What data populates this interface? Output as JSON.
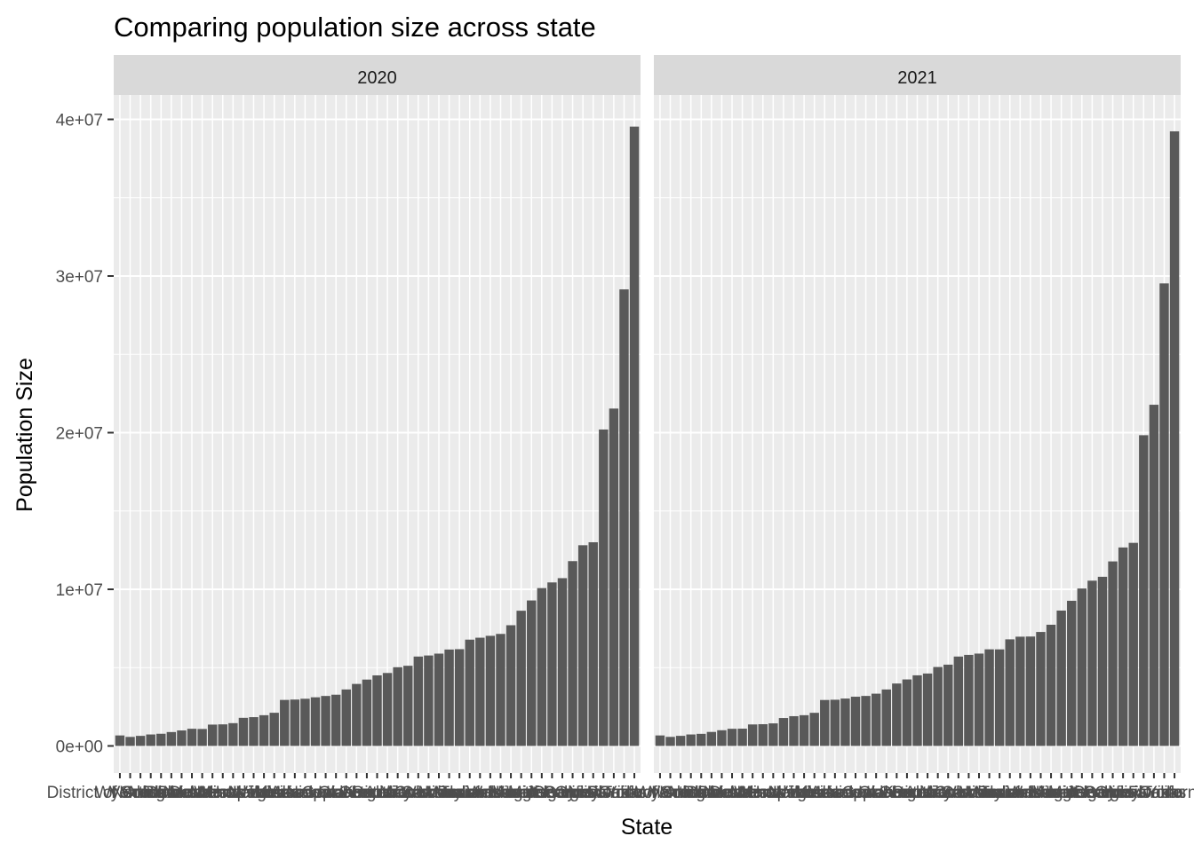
{
  "chart_data": {
    "type": "bar",
    "title": "Comparing population size across state",
    "xlabel": "State",
    "ylabel": "Population Size",
    "ylim": [
      -1700000,
      40500000
    ],
    "yticks": [
      0,
      10000000,
      20000000,
      30000000,
      40000000
    ],
    "ytick_labels": [
      "0e+00",
      "1e+07",
      "2e+07",
      "3e+07",
      "4e+07"
    ],
    "grid": true,
    "legend": "none",
    "bar_color": "#595959",
    "panel_bg": "#ebebeb",
    "strip_bg": "#d9d9d9",
    "categories": [
      "District of Columbia",
      "Wyoming",
      "Vermont",
      "Alaska",
      "North Dakota",
      "South Dakota",
      "Delaware",
      "Rhode Island",
      "Montana",
      "Maine",
      "New Hampshire",
      "Hawaii",
      "West Virginia",
      "Idaho",
      "Nebraska",
      "New Mexico",
      "Kansas",
      "Mississippi",
      "Arkansas",
      "Nevada",
      "Iowa",
      "Utah",
      "Connecticut",
      "Oklahoma",
      "Oregon",
      "Kentucky",
      "Louisiana",
      "Alabama",
      "South Carolina",
      "Minnesota",
      "Colorado",
      "Wisconsin",
      "Missouri",
      "Maryland",
      "Indiana",
      "Tennessee",
      "Massachusetts",
      "Arizona",
      "Washington",
      "Virginia",
      "New Jersey",
      "Michigan",
      "North Carolina",
      "Georgia",
      "Ohio",
      "Illinois",
      "Pennsylvania",
      "New York",
      "Florida",
      "Texas",
      "California"
    ],
    "panels": [
      {
        "label": "2020",
        "values": [
          670000,
          577000,
          643000,
          733000,
          779000,
          887000,
          990000,
          1097000,
          1084000,
          1363000,
          1378000,
          1455000,
          1794000,
          1839000,
          1962000,
          2118000,
          2938000,
          2961000,
          3012000,
          3105000,
          3191000,
          3272000,
          3606000,
          3959000,
          4237000,
          4506000,
          4658000,
          5025000,
          5119000,
          5707000,
          5774000,
          5893000,
          6155000,
          6178000,
          6786000,
          6910000,
          7030000,
          7152000,
          7706000,
          8632000,
          9288000,
          10077000,
          10439000,
          10711000,
          11799000,
          12813000,
          13003000,
          20201000,
          21538000,
          29146000,
          39538000
        ]
      },
      {
        "label": "2021",
        "values": [
          670000,
          579000,
          645000,
          733000,
          774000,
          895000,
          1003000,
          1096000,
          1104000,
          1373000,
          1389000,
          1441000,
          1782000,
          1900000,
          1963000,
          2115000,
          2934000,
          2950000,
          3025000,
          3143000,
          3193000,
          3338000,
          3605000,
          3986000,
          4246000,
          4509000,
          4624000,
          5039000,
          5190000,
          5707000,
          5812000,
          5895000,
          6168000,
          6165000,
          6805000,
          6975000,
          6985000,
          7276000,
          7738000,
          8642000,
          9267000,
          10051000,
          10551000,
          10799000,
          11780000,
          12671000,
          12965000,
          19836000,
          21781000,
          29528000,
          39237000
        ]
      }
    ]
  }
}
